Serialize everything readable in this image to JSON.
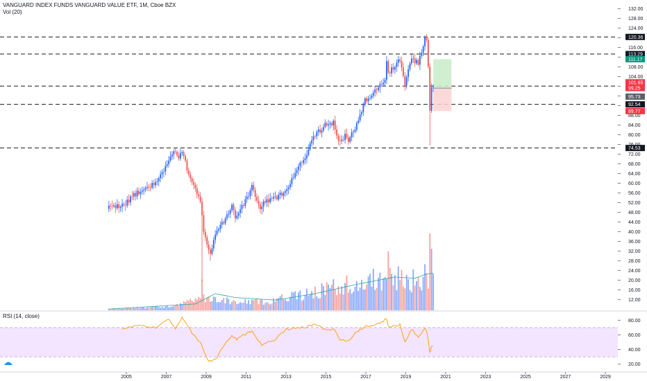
{
  "header": {
    "title": "VANGUARD INDEX FUNDS VANGUARD VALUE ETF, 1M, Cboe BZX",
    "volume_label": "Vol (20)",
    "rsi_label": "RSI (14, close)"
  },
  "colors": {
    "up": "#2962ff",
    "down": "#ef5350",
    "rsi_line": "#ff9800",
    "rsi_band": "#f3e5ff",
    "ma_line": "#26a69a",
    "tp_zone": "#c8ecc9",
    "sl_zone": "#fbd2d2"
  },
  "chart_data": [
    {
      "type": "candlestick",
      "title": "VANGUARD INDEX FUNDS VANGUARD VALUE ETF, 1M, Cboe BZX",
      "x_ticks": [
        "2005",
        "2007",
        "2009",
        "2011",
        "2013",
        "2015",
        "2017",
        "2019",
        "2021",
        "2023",
        "2025",
        "2027",
        "2029"
      ],
      "y_ticks": [
        "132.00",
        "128.00",
        "124.00",
        "120.00",
        "116.00",
        "112.00",
        "108.00",
        "104.00",
        "100.00",
        "96.00",
        "92.00",
        "88.00",
        "84.00",
        "80.00",
        "76.00",
        "72.00",
        "68.00",
        "64.00",
        "60.00",
        "56.00",
        "52.00",
        "48.00",
        "44.00",
        "40.00",
        "36.00",
        "32.00",
        "28.00",
        "24.00",
        "20.00",
        "16.00",
        "12.00"
      ],
      "ylim": [
        10.4,
        133.6
      ],
      "start": "2004-02",
      "keypoints": [
        [
          "2004-02",
          49.8
        ],
        [
          "2004-10",
          50.5
        ],
        [
          "2005-06",
          55.5
        ],
        [
          "2006-06",
          60
        ],
        [
          "2006-12",
          67
        ],
        [
          "2007-05",
          72.5
        ],
        [
          "2007-08",
          71
        ],
        [
          "2007-10",
          73.8
        ],
        [
          "2008-01",
          66
        ],
        [
          "2008-06",
          58
        ],
        [
          "2008-09",
          53
        ],
        [
          "2008-11",
          40
        ],
        [
          "2009-02",
          32
        ],
        [
          "2009-03",
          31
        ],
        [
          "2009-06",
          39
        ],
        [
          "2009-12",
          45.5
        ],
        [
          "2010-04",
          51
        ],
        [
          "2010-06",
          46.5
        ],
        [
          "2010-12",
          52.5
        ],
        [
          "2011-04",
          58.5
        ],
        [
          "2011-09",
          49.5
        ],
        [
          "2011-12",
          52.5
        ],
        [
          "2012-06",
          53.5
        ],
        [
          "2012-12",
          57
        ],
        [
          "2013-12",
          71
        ],
        [
          "2014-06",
          80
        ],
        [
          "2014-12",
          84
        ],
        [
          "2015-05",
          85
        ],
        [
          "2015-09",
          76.5
        ],
        [
          "2015-12",
          79.5
        ],
        [
          "2016-02",
          77
        ],
        [
          "2016-06",
          83
        ],
        [
          "2016-12",
          94
        ],
        [
          "2017-12",
          103
        ],
        [
          "2018-01",
          110
        ],
        [
          "2018-02",
          105
        ],
        [
          "2018-09",
          111.5
        ],
        [
          "2018-12",
          100.5
        ],
        [
          "2019-04",
          112
        ],
        [
          "2019-08",
          109
        ],
        [
          "2019-12",
          120
        ],
        [
          "2020-01",
          119
        ],
        [
          "2020-02",
          109
        ],
        [
          "2020-03",
          91
        ],
        [
          "2020-04",
          98.5
        ],
        [
          "2020-05",
          100.2
        ]
      ],
      "wick_extremes": [
        [
          "2008-10",
          48.5,
          19.5,
          "low"
        ],
        [
          "2009-03",
          36,
          28,
          "low"
        ],
        [
          "2020-03",
          108.5,
          75.5,
          "low"
        ],
        [
          "2020-01",
          121.5,
          115,
          "high"
        ]
      ]
    },
    {
      "type": "bar",
      "title": "Vol (20)",
      "start": "2004-02",
      "volume_keypoints": [
        [
          "2004-02",
          0.5
        ],
        [
          "2007-01",
          1.5
        ],
        [
          "2008-10",
          5
        ],
        [
          "2009-06",
          5
        ],
        [
          "2010-06",
          3
        ],
        [
          "2012-01",
          3.5
        ],
        [
          "2014-01",
          6.5
        ],
        [
          "2016-01",
          10
        ],
        [
          "2018-01",
          13
        ],
        [
          "2019-12",
          11
        ],
        [
          "2020-05",
          14
        ]
      ],
      "volume_spikes": [
        [
          "2008-10",
          12
        ],
        [
          "2018-02",
          23
        ],
        [
          "2019-12",
          18
        ],
        [
          "2020-03",
          30
        ],
        [
          "2020-04",
          24
        ]
      ],
      "ma_keypoints": [
        [
          "2004-02",
          0.5
        ],
        [
          "2008-06",
          2.5
        ],
        [
          "2009-06",
          6.5
        ],
        [
          "2010-06",
          5
        ],
        [
          "2012-06",
          4
        ],
        [
          "2014-06",
          6.5
        ],
        [
          "2016-06",
          10
        ],
        [
          "2018-06",
          13
        ],
        [
          "2019-06",
          12.5
        ],
        [
          "2019-12",
          14
        ],
        [
          "2020-05",
          14.5
        ]
      ]
    },
    {
      "type": "line",
      "title": "RSI (14, close)",
      "y_ticks": [
        "80.00",
        "60.00",
        "40.00",
        "20.00"
      ],
      "ylim": [
        14,
        86
      ],
      "band": [
        30,
        70
      ],
      "start": "2004-02",
      "rsi_keypoints": [
        [
          "2004-10",
          68
        ],
        [
          "2005-06",
          73
        ],
        [
          "2006-06",
          70
        ],
        [
          "2006-12",
          80
        ],
        [
          "2007-02",
          82
        ],
        [
          "2007-06",
          68
        ],
        [
          "2007-10",
          84
        ],
        [
          "2008-04",
          63
        ],
        [
          "2008-09",
          50
        ],
        [
          "2009-02",
          24
        ],
        [
          "2009-06",
          26
        ],
        [
          "2009-12",
          49
        ],
        [
          "2010-04",
          58
        ],
        [
          "2010-07",
          54
        ],
        [
          "2011-01",
          62
        ],
        [
          "2011-04",
          66
        ],
        [
          "2011-10",
          46
        ],
        [
          "2012-06",
          54
        ],
        [
          "2013-01",
          68
        ],
        [
          "2013-12",
          71
        ],
        [
          "2014-06",
          74
        ],
        [
          "2014-12",
          68
        ],
        [
          "2015-06",
          67
        ],
        [
          "2015-09",
          54
        ],
        [
          "2016-02",
          52
        ],
        [
          "2016-06",
          62
        ],
        [
          "2016-12",
          72
        ],
        [
          "2017-06",
          73
        ],
        [
          "2018-01",
          82
        ],
        [
          "2018-02",
          71
        ],
        [
          "2018-09",
          74
        ],
        [
          "2018-12",
          50
        ],
        [
          "2019-04",
          68
        ],
        [
          "2019-08",
          57
        ],
        [
          "2019-12",
          68
        ],
        [
          "2020-01",
          65
        ],
        [
          "2020-02",
          54
        ],
        [
          "2020-03",
          35
        ],
        [
          "2020-04",
          43
        ],
        [
          "2020-05",
          44
        ]
      ]
    }
  ],
  "hlines": [
    {
      "value": 120.36,
      "label": "120.36",
      "bg": "#131722"
    },
    {
      "value": 113.29,
      "label": "113.29",
      "bg": "#131722"
    },
    {
      "value": 100.08,
      "label": "100.08",
      "bg": "#131722"
    },
    {
      "value": 92.54,
      "label": "92.54",
      "bg": "#131722"
    },
    {
      "value": 74.53,
      "label": "74.53",
      "bg": "#131722"
    }
  ],
  "position": {
    "start": "2020-05",
    "end": "2021-04",
    "target": 111.17,
    "entry": 99.25,
    "stop": 89.77,
    "labels": [
      {
        "value": 111.17,
        "label": "111.17",
        "bg": "#089981"
      },
      {
        "value": 101.65,
        "label": "101.65",
        "bg": "#f23645"
      },
      {
        "value": 99.25,
        "label": "99.25",
        "bg": "#f23645"
      },
      {
        "value": 95.73,
        "label": "95.73",
        "bg": "#5d606b"
      },
      {
        "value": 89.77,
        "label": "89.77",
        "bg": "#f23645"
      }
    ]
  },
  "logo_text": "TV"
}
